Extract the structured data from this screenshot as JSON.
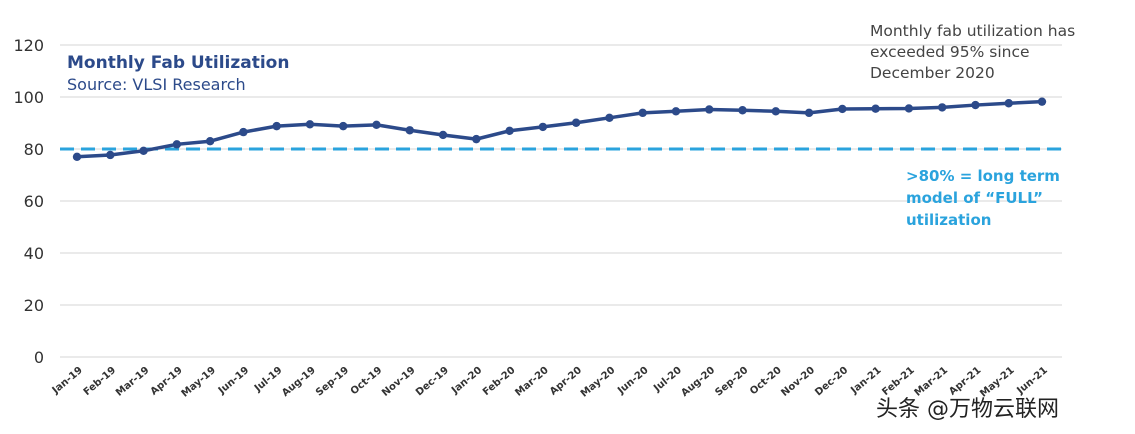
{
  "chart_data": {
    "type": "line",
    "title": "Monthly Fab Utilization",
    "subtitle": "Source: VLSI Research",
    "categories": [
      "Jan-19",
      "Feb-19",
      "Mar-19",
      "Apr-19",
      "May-19",
      "Jun-19",
      "Jul-19",
      "Aug-19",
      "Sep-19",
      "Oct-19",
      "Nov-19",
      "Dec-19",
      "Jan-20",
      "Feb-20",
      "Mar-20",
      "Apr-20",
      "May-20",
      "Jun-20",
      "Jul-20",
      "Aug-20",
      "Sep-20",
      "Oct-20",
      "Nov-20",
      "Dec-20",
      "Jan-21",
      "Feb-21",
      "Mar-21",
      "Apr-21",
      "May-21",
      "Jun-21"
    ],
    "series": [
      {
        "values": [
          77,
          77.7,
          79.3,
          81.8,
          83,
          86.5,
          88.8,
          89.5,
          88.8,
          89.3,
          87.2,
          85.4,
          83.8,
          87,
          88.5,
          90.1,
          92,
          93.9,
          94.5,
          95.2,
          94.9,
          94.5,
          93.9,
          95.4,
          95.5,
          95.6,
          96,
          96.9,
          97.6,
          98.2
        ],
        "color": "#2c4a8a"
      }
    ],
    "ylim": [
      0,
      120
    ],
    "yticks": [
      0,
      20,
      40,
      60,
      80,
      100,
      120
    ],
    "grid": true,
    "reference_line": {
      "value": 80,
      "style": "dashed",
      "color": "#2aa3dd",
      "label_lines": [
        ">80% = long term",
        "model of “FULL”",
        "utilization"
      ]
    },
    "annotation": {
      "lines": [
        "Monthly fab utilization has",
        "exceeded 95% since",
        "December 2020"
      ]
    }
  },
  "watermark": "头条 @万物云联网"
}
